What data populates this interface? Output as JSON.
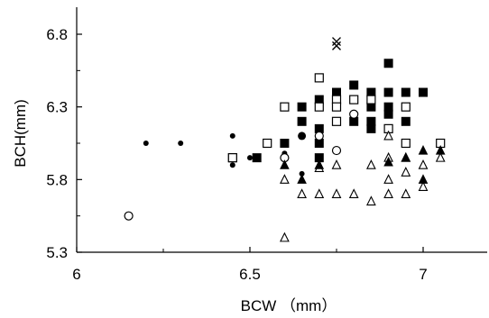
{
  "chart_data": {
    "type": "scatter",
    "xlabel": "BCW （mm）",
    "ylabel": "BCH(mm)",
    "xlim": [
      6,
      7.2
    ],
    "ylim": [
      5.3,
      7.0
    ],
    "x_ticks": [
      "6",
      "6.5",
      "7"
    ],
    "y_ticks": [
      "5.3",
      "5.8",
      "6.3",
      "6.8"
    ],
    "grid": false,
    "legend": "none",
    "series": [
      {
        "marker": "filled-square",
        "points": [
          [
            6.45,
            5.95
          ],
          [
            6.52,
            5.95
          ],
          [
            6.6,
            6.05
          ],
          [
            6.65,
            6.3
          ],
          [
            6.65,
            6.2
          ],
          [
            6.7,
            6.35
          ],
          [
            6.7,
            6.15
          ],
          [
            6.7,
            6.05
          ],
          [
            6.7,
            5.95
          ],
          [
            6.75,
            6.4
          ],
          [
            6.8,
            6.45
          ],
          [
            6.8,
            6.2
          ],
          [
            6.85,
            6.4
          ],
          [
            6.85,
            6.3
          ],
          [
            6.85,
            6.2
          ],
          [
            6.85,
            6.15
          ],
          [
            6.9,
            6.6
          ],
          [
            6.9,
            6.4
          ],
          [
            6.9,
            6.3
          ],
          [
            6.9,
            6.25
          ],
          [
            6.95,
            6.4
          ],
          [
            6.95,
            6.2
          ],
          [
            7.0,
            6.4
          ]
        ]
      },
      {
        "marker": "open-square",
        "points": [
          [
            6.45,
            5.95
          ],
          [
            6.55,
            6.05
          ],
          [
            6.6,
            6.3
          ],
          [
            6.7,
            6.5
          ],
          [
            6.7,
            6.3
          ],
          [
            6.75,
            6.35
          ],
          [
            6.75,
            6.3
          ],
          [
            6.75,
            6.2
          ],
          [
            6.8,
            6.35
          ],
          [
            6.85,
            6.35
          ],
          [
            6.9,
            6.15
          ],
          [
            6.95,
            6.3
          ],
          [
            6.95,
            6.05
          ],
          [
            7.05,
            6.05
          ]
        ]
      },
      {
        "marker": "filled-circle-small",
        "points": [
          [
            6.2,
            6.05
          ],
          [
            6.3,
            6.05
          ],
          [
            6.45,
            6.1
          ],
          [
            6.45,
            5.9
          ],
          [
            6.5,
            5.95
          ],
          [
            6.6,
            5.98
          ],
          [
            6.65,
            5.84
          ]
        ]
      },
      {
        "marker": "filled-circle",
        "points": [
          [
            6.65,
            6.1
          ]
        ]
      },
      {
        "marker": "open-circle",
        "points": [
          [
            6.15,
            5.55
          ],
          [
            6.6,
            5.95
          ],
          [
            6.7,
            6.1
          ],
          [
            6.75,
            6.0
          ],
          [
            6.8,
            6.25
          ]
        ]
      },
      {
        "marker": "open-triangle",
        "points": [
          [
            6.6,
            5.4
          ],
          [
            6.6,
            5.8
          ],
          [
            6.65,
            5.7
          ],
          [
            6.7,
            5.7
          ],
          [
            6.7,
            5.88
          ],
          [
            6.75,
            5.7
          ],
          [
            6.75,
            5.9
          ],
          [
            6.8,
            5.7
          ],
          [
            6.85,
            5.65
          ],
          [
            6.85,
            5.9
          ],
          [
            6.9,
            5.7
          ],
          [
            6.9,
            5.8
          ],
          [
            6.9,
            5.95
          ],
          [
            6.9,
            6.1
          ],
          [
            6.95,
            5.7
          ],
          [
            6.95,
            5.85
          ],
          [
            6.95,
            5.95
          ],
          [
            7.0,
            5.75
          ],
          [
            7.0,
            5.9
          ],
          [
            7.05,
            5.95
          ]
        ]
      },
      {
        "marker": "filled-triangle",
        "points": [
          [
            6.6,
            5.9
          ],
          [
            6.65,
            5.8
          ],
          [
            6.7,
            5.9
          ],
          [
            6.9,
            5.92
          ],
          [
            6.95,
            5.95
          ],
          [
            7.0,
            6.0
          ],
          [
            7.0,
            5.8
          ],
          [
            7.05,
            6.0
          ]
        ]
      },
      {
        "marker": "cross",
        "points": [
          [
            6.75,
            6.75
          ],
          [
            6.75,
            6.72
          ]
        ]
      }
    ]
  }
}
